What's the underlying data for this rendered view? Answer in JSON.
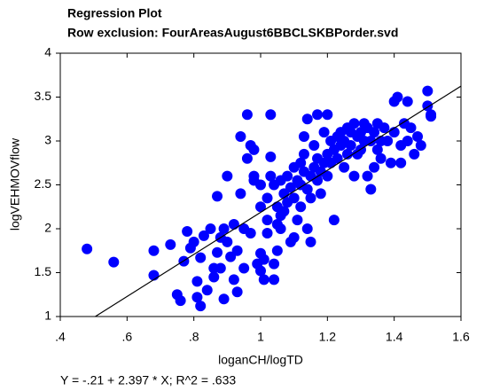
{
  "chart_data": {
    "type": "scatter",
    "title": "Regression Plot",
    "subtitle": "Row exclusion: FourAreasAugust6BBCLSKBPorder.svd",
    "x_label": "loganCH/logTD",
    "y_label": "logVEHMOVflow",
    "annotation": "Y = -.21 + 2.397 * X; R^2 = .633",
    "fit": {
      "intercept": -0.21,
      "slope": 2.397
    },
    "color": "#0000ff",
    "xlim": [
      0.4,
      1.6
    ],
    "xticks": [
      {
        "value": 0.4,
        "label": ".4"
      },
      {
        "value": 0.6,
        "label": ".6"
      },
      {
        "value": 0.8,
        "label": ".8"
      },
      1,
      {
        "value": 1.2,
        "label": "1.2"
      },
      {
        "value": 1.4,
        "label": "1.4"
      },
      {
        "value": 1.6,
        "label": "1.6"
      }
    ],
    "ylim": [
      1,
      4
    ],
    "yticks": [
      1,
      1.5,
      2,
      2.5,
      3,
      3.5,
      4
    ],
    "x": [
      0.48,
      0.56,
      0.68,
      0.68,
      0.73,
      0.75,
      0.76,
      0.77,
      0.78,
      0.79,
      0.8,
      0.81,
      0.81,
      0.82,
      0.82,
      0.83,
      0.84,
      0.85,
      0.86,
      0.86,
      0.87,
      0.87,
      0.88,
      0.88,
      0.89,
      0.89,
      0.9,
      0.9,
      0.91,
      0.92,
      0.92,
      0.93,
      0.93,
      0.94,
      0.94,
      0.95,
      0.95,
      0.96,
      0.96,
      0.97,
      0.97,
      0.98,
      0.98,
      0.98,
      0.99,
      1.0,
      1.0,
      1.0,
      1.0,
      1.01,
      1.01,
      1.02,
      1.02,
      1.02,
      1.03,
      1.03,
      1.03,
      1.04,
      1.04,
      1.04,
      1.05,
      1.05,
      1.05,
      1.06,
      1.06,
      1.06,
      1.07,
      1.07,
      1.08,
      1.08,
      1.09,
      1.09,
      1.1,
      1.1,
      1.1,
      1.11,
      1.11,
      1.12,
      1.12,
      1.12,
      1.13,
      1.13,
      1.13,
      1.14,
      1.14,
      1.14,
      1.15,
      1.15,
      1.15,
      1.16,
      1.16,
      1.17,
      1.17,
      1.17,
      1.18,
      1.18,
      1.19,
      1.19,
      1.2,
      1.2,
      1.2,
      1.21,
      1.21,
      1.22,
      1.22,
      1.23,
      1.23,
      1.24,
      1.24,
      1.25,
      1.25,
      1.26,
      1.26,
      1.27,
      1.27,
      1.28,
      1.28,
      1.29,
      1.29,
      1.3,
      1.3,
      1.31,
      1.31,
      1.32,
      1.32,
      1.33,
      1.33,
      1.34,
      1.34,
      1.35,
      1.35,
      1.36,
      1.36,
      1.37,
      1.38,
      1.39,
      1.4,
      1.4,
      1.41,
      1.42,
      1.42,
      1.43,
      1.44,
      1.44,
      1.45,
      1.46,
      1.47,
      1.48,
      1.5,
      1.5,
      1.51,
      1.51
    ],
    "values": [
      1.77,
      1.62,
      1.75,
      1.47,
      1.82,
      1.25,
      1.18,
      1.63,
      1.97,
      1.78,
      1.85,
      1.22,
      1.4,
      1.12,
      1.67,
      1.92,
      1.3,
      2.0,
      1.55,
      1.45,
      1.73,
      2.37,
      1.55,
      1.9,
      2.0,
      1.2,
      1.85,
      2.6,
      1.68,
      1.42,
      2.05,
      1.28,
      1.75,
      2.4,
      3.05,
      1.55,
      2.0,
      2.8,
      3.3,
      1.95,
      2.95,
      2.55,
      2.9,
      2.6,
      1.6,
      1.52,
      1.72,
      2.25,
      2.5,
      1.65,
      1.42,
      2.1,
      1.95,
      2.35,
      2.82,
      2.6,
      3.3,
      2.5,
      1.6,
      1.42,
      1.75,
      2.05,
      2.25,
      2.15,
      2.0,
      2.55,
      2.4,
      2.2,
      2.3,
      2.6,
      2.47,
      1.85,
      2.7,
      2.35,
      1.9,
      2.55,
      2.1,
      2.75,
      2.5,
      2.25,
      2.85,
      2.65,
      3.05,
      2.0,
      2.45,
      3.25,
      2.6,
      2.35,
      1.85,
      2.7,
      2.95,
      2.8,
      2.55,
      3.3,
      2.65,
      2.4,
      2.75,
      3.1,
      2.85,
      2.6,
      3.3,
      3.0,
      2.75,
      2.9,
      2.1,
      3.05,
      2.8,
      2.95,
      3.1,
      2.7,
      3.0,
      3.15,
      2.85,
      2.95,
      3.1,
      2.6,
      3.2,
      3.05,
      2.85,
      3.1,
      2.9,
      3.0,
      3.2,
      2.6,
      3.15,
      3.0,
      2.45,
      3.1,
      2.7,
      3.2,
      2.9,
      2.8,
      3.0,
      3.15,
      3.0,
      2.75,
      3.45,
      3.1,
      3.5,
      2.95,
      2.75,
      3.2,
      3.45,
      3.0,
      3.15,
      2.85,
      3.05,
      2.95,
      3.57,
      3.4,
      3.3,
      3.28
    ]
  }
}
